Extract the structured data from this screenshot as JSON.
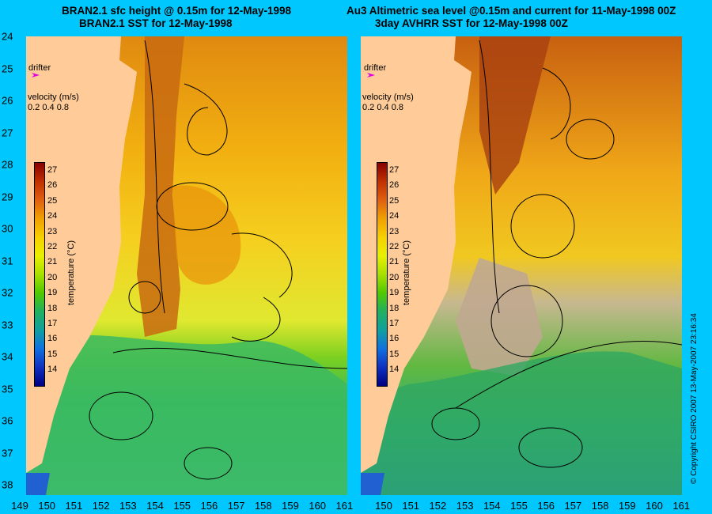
{
  "left_panel": {
    "title_line1": "BRAN2.1 sfc height @ 0.15m for 12-May-1998",
    "title_line2": "BRAN2.1 SST for 12-May-1998"
  },
  "right_panel": {
    "title_line1": "Au3 Altimetric sea level  @0.15m and current for 11-May-1998 00Z",
    "title_line2": "3day AVHRR SST for 12-May-1998 00Z"
  },
  "map": {
    "lat_ticks": [
      "24",
      "25",
      "26",
      "27",
      "28",
      "29",
      "30",
      "31",
      "32",
      "33",
      "34",
      "35",
      "36",
      "37",
      "38"
    ],
    "lon_ticks_left": [
      "149",
      "150",
      "151",
      "152",
      "153",
      "154",
      "155",
      "156",
      "157",
      "158",
      "159",
      "160",
      "161"
    ],
    "lon_ticks_right": [
      "150",
      "151",
      "152",
      "153",
      "154",
      "155",
      "156",
      "157",
      "158",
      "159",
      "160",
      "161"
    ],
    "land_color": "#ffcc99",
    "background_color": "#00c8ff"
  },
  "overlay": {
    "drifter_label": "drifter",
    "velocity_label": "velocity (m/s)",
    "velocity_scale": "0.2 0.4 0.8",
    "drifter_color": "#e000e0"
  },
  "colorbar": {
    "title": "temperature (°C)",
    "labels": [
      "27",
      "26",
      "25",
      "24",
      "23",
      "22",
      "21",
      "20",
      "19",
      "18",
      "17",
      "16",
      "15",
      "14"
    ]
  },
  "copyright": "© Copyright CSIRO 2007   13-May-2007 23:16:34"
}
